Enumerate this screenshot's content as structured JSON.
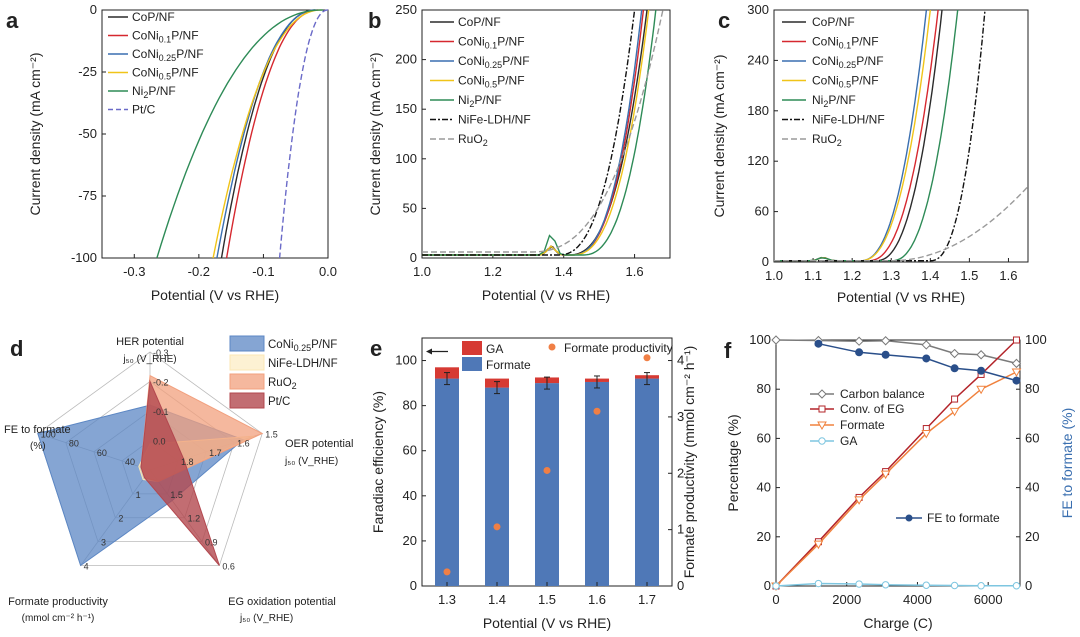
{
  "colors": {
    "CoP": "#2b2b2b",
    "CoNi01": "#d6282f",
    "CoNi025": "#3a6fb0",
    "CoNi05": "#f0c419",
    "Ni2P": "#2e8b57",
    "PtC": "#6a6ac8",
    "NiFe": "#111111",
    "RuO2": "#9a9a9a",
    "bar_formate": "#4f78b7",
    "bar_GA": "#d63a33",
    "dot": "#f07f45",
    "carbon": "#7a7a7a",
    "conv": "#b3242a",
    "formate_line": "#f0823e",
    "GA_line": "#7ec6e0",
    "FE_line": "#2a4f8a",
    "radar_CoNi": "#5c87c4",
    "radar_NiFe": "#fbe7b5",
    "radar_RuO2": "#f2a07e",
    "radar_PtC": "#b3484f"
  },
  "chart_data": [
    {
      "panel": "a",
      "type": "line",
      "xlabel": "Potential (V vs RHE)",
      "ylabel": "Current density (mA cm⁻²)",
      "xlim": [
        -0.35,
        0.0
      ],
      "ylim": [
        -100,
        0
      ],
      "xticks": [
        "-0.3",
        "-0.2",
        "-0.1",
        "0.0"
      ],
      "yticks": [
        "0",
        "-25",
        "-50",
        "-75",
        "-100"
      ],
      "legend": [
        "CoP/NF",
        "CoNi0.1P/NF",
        "CoNi0.25P/NF",
        "CoNi0.5P/NF",
        "Ni2P/NF",
        "Pt/C"
      ],
      "legend_placement": "top-left",
      "series": [
        {
          "name": "CoP/NF",
          "onset": -0.02,
          "v100": -0.165
        },
        {
          "name": "CoNi0.1P/NF",
          "onset": -0.015,
          "v100": -0.157
        },
        {
          "name": "CoNi0.25P/NF",
          "onset": -0.018,
          "v100": -0.172
        },
        {
          "name": "CoNi0.5P/NF",
          "onset": -0.01,
          "v100": -0.178
        },
        {
          "name": "Ni2P/NF",
          "onset": -0.008,
          "v100": -0.265
        },
        {
          "name": "Pt/C",
          "onset": 0.0,
          "v100": -0.075
        }
      ]
    },
    {
      "panel": "b",
      "type": "line",
      "xlabel": "Potential (V vs RHE)",
      "ylabel": "Current density (mA cm⁻²)",
      "xlim": [
        1.0,
        1.7
      ],
      "ylim": [
        0,
        250
      ],
      "xticks": [
        "1.0",
        "1.2",
        "1.4",
        "1.6"
      ],
      "yticks": [
        "0",
        "50",
        "100",
        "150",
        "200",
        "250"
      ],
      "legend": [
        "CoP/NF",
        "CoNi0.1P/NF",
        "CoNi0.25P/NF",
        "CoNi0.5P/NF",
        "Ni2P/NF",
        "NiFe-LDH/NF",
        "RuO2"
      ],
      "legend_placement": "top-left",
      "series": [
        {
          "name": "CoP/NF",
          "onset": 1.41,
          "v250": 1.635
        },
        {
          "name": "CoNi0.1P/NF",
          "onset": 1.42,
          "v250": 1.625
        },
        {
          "name": "CoNi0.25P/NF",
          "onset": 1.42,
          "v250": 1.62
        },
        {
          "name": "CoNi0.5P/NF",
          "onset": 1.42,
          "v250": 1.64
        },
        {
          "name": "Ni2P/NF",
          "onset": 1.45,
          "v250": 1.66
        },
        {
          "name": "NiFe-LDH/NF",
          "onset": 1.38,
          "v250": 1.6
        },
        {
          "name": "RuO2",
          "onset": 1.3,
          "v250": 1.68
        }
      ]
    },
    {
      "panel": "c",
      "type": "line",
      "xlabel": "Potential (V vs RHE)",
      "ylabel": "Current density (mA cm⁻²)",
      "xlim": [
        1.0,
        1.65
      ],
      "ylim": [
        0,
        300
      ],
      "xticks": [
        "1.0",
        "1.1",
        "1.2",
        "1.3",
        "1.4",
        "1.5",
        "1.6"
      ],
      "yticks": [
        "0",
        "60",
        "120",
        "180",
        "240",
        "300"
      ],
      "legend": [
        "CoP/NF",
        "CoNi0.1P/NF",
        "CoNi0.25P/NF",
        "CoNi0.5P/NF",
        "Ni2P/NF",
        "NiFe-LDH/NF",
        "RuO2"
      ],
      "legend_placement": "top-left",
      "series": [
        {
          "name": "CoP/NF",
          "onset": 1.26,
          "v300": 1.43
        },
        {
          "name": "CoNi0.1P/NF",
          "onset": 1.24,
          "v300": 1.42
        },
        {
          "name": "CoNi0.25P/NF",
          "onset": 1.22,
          "v300": 1.39
        },
        {
          "name": "CoNi0.5P/NF",
          "onset": 1.22,
          "v300": 1.4
        },
        {
          "name": "Ni2P/NF",
          "onset": 1.3,
          "v300": 1.47
        },
        {
          "name": "NiFe-LDH/NF",
          "onset": 1.4,
          "v300": 1.54
        },
        {
          "name": "RuO2",
          "onset": 1.3,
          "vend": 1.65,
          "jend": 90
        }
      ]
    },
    {
      "panel": "d",
      "type": "radar",
      "axes": [
        {
          "label": "HER potential",
          "sublabel": "j₅₀ (V_RHE)",
          "ticks": [
            "0.0",
            "-0.1",
            "-0.2",
            "-0.3"
          ]
        },
        {
          "label": "OER  potential",
          "sublabel": "j₅₀ (V_RHE)",
          "ticks": [
            "1.8",
            "1.7",
            "1.6",
            "1.5"
          ]
        },
        {
          "label": "EG oxidation potential",
          "sublabel": "j₅₀ (V_RHE)",
          "ticks": [
            "1.5",
            "1.2",
            "0.9",
            "0.6"
          ]
        },
        {
          "label": "Formate productivity",
          "sublabel": "(mmol cm⁻² h⁻¹)",
          "ticks": [
            "1",
            "2",
            "3",
            "4"
          ]
        },
        {
          "label": "FE to formate",
          "sublabel": "(%)",
          "ticks": [
            "40",
            "60",
            "80",
            "100"
          ]
        }
      ],
      "legend": [
        "CoNi0.25P/NF",
        "NiFe-LDH/NF",
        "RuO2",
        "Pt/C"
      ],
      "series": [
        {
          "name": "CoNi0.25P/NF",
          "values": [
            0.62,
            0.82,
            0.3,
            1.0,
            1.0
          ]
        },
        {
          "name": "NiFe-LDH/NF",
          "values": [
            0.0,
            0.95,
            0.0,
            0.0,
            0.0
          ]
        },
        {
          "name": "RuO2",
          "values": [
            0.0,
            1.0,
            0.0,
            0.0,
            0.0
          ]
        },
        {
          "name": "Pt/C",
          "values": [
            1.0,
            0.0,
            1.0,
            0.0,
            0.0
          ]
        }
      ]
    },
    {
      "panel": "e",
      "type": "bar",
      "xlabel": "Potential (V vs RHE)",
      "ylabel": "Faradiac efficiency (%)",
      "ylabel_right": "Formate productivity (mmol cm⁻² h⁻¹)",
      "categories": [
        "1.3",
        "1.4",
        "1.5",
        "1.6",
        "1.7"
      ],
      "ylim": [
        0,
        110
      ],
      "ylim_right": [
        0,
        4.4
      ],
      "yticks": [
        "0",
        "20",
        "40",
        "60",
        "80",
        "100"
      ],
      "yticks_right": [
        "0",
        "1",
        "2",
        "3",
        "4"
      ],
      "legend": [
        "GA",
        "Formate",
        "Formate productivity"
      ],
      "series": [
        {
          "name": "Formate",
          "values": [
            92,
            88,
            90,
            90.5,
            92
          ]
        },
        {
          "name": "GA",
          "values": [
            5,
            4,
            2.5,
            1.5,
            1.5
          ]
        },
        {
          "name": "Formate productivity",
          "values": [
            0.25,
            1.05,
            2.05,
            3.1,
            4.05
          ]
        }
      ]
    },
    {
      "panel": "f",
      "type": "line",
      "xlabel": "Charge (C)",
      "ylabel": "Percentage (%)",
      "ylabel_right": "FE to formate (%)",
      "xlim": [
        0,
        6900
      ],
      "ylim": [
        0,
        100
      ],
      "xticks": [
        "0",
        "2000",
        "4000",
        "6000"
      ],
      "yticks": [
        "0",
        "20",
        "40",
        "60",
        "80",
        "100"
      ],
      "legend": [
        "Carbon balance",
        "Conv. of EG",
        "Formate",
        "GA",
        "FE to formate"
      ],
      "series": [
        {
          "name": "Carbon balance",
          "x": [
            0,
            1200,
            2350,
            3100,
            4250,
            5050,
            5800,
            6800
          ],
          "y": [
            100,
            99.8,
            99.5,
            99.7,
            98,
            94.5,
            94,
            90.5
          ]
        },
        {
          "name": "Conv. of EG",
          "x": [
            0,
            1200,
            2350,
            3100,
            4250,
            5050,
            5800,
            6800
          ],
          "y": [
            0,
            18,
            36,
            46.5,
            64,
            76,
            86,
            100
          ]
        },
        {
          "name": "Formate",
          "x": [
            0,
            1200,
            2350,
            3100,
            4250,
            5050,
            5800,
            6800
          ],
          "y": [
            0,
            17,
            35,
            45.5,
            62,
            71,
            80,
            87
          ]
        },
        {
          "name": "GA",
          "x": [
            0,
            1200,
            2350,
            3100,
            4250,
            5050,
            5800,
            6800
          ],
          "y": [
            0,
            1,
            0.8,
            0.5,
            0.3,
            0.2,
            0.1,
            0.1
          ]
        },
        {
          "name": "FE to formate",
          "x": [
            1200,
            2350,
            3100,
            4250,
            5050,
            5800,
            6800
          ],
          "y": [
            98.5,
            95,
            94,
            92.5,
            88.5,
            87.5,
            83.5
          ]
        }
      ]
    }
  ],
  "panel_labels": [
    "a",
    "b",
    "c",
    "d",
    "e",
    "f"
  ]
}
